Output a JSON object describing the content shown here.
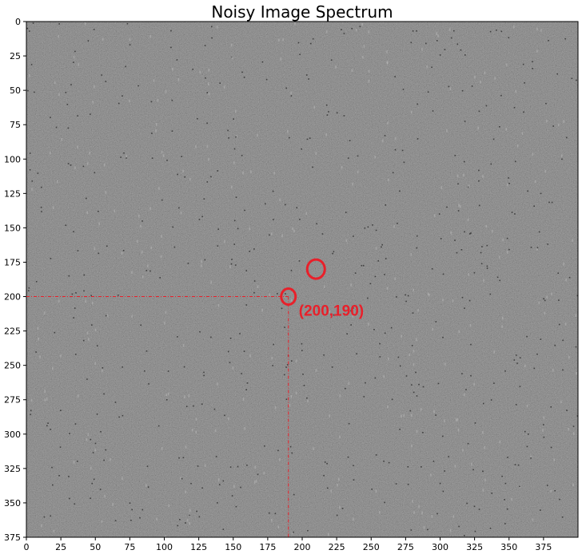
{
  "chart_data": {
    "type": "heatmap",
    "title": "Noisy Image Spectrum",
    "xlabel": "",
    "ylabel": "",
    "xlim": [
      0,
      400
    ],
    "ylim": [
      375,
      0
    ],
    "colormap": "gray",
    "grid": false,
    "x_ticks": [
      0,
      25,
      50,
      75,
      100,
      125,
      150,
      175,
      200,
      225,
      250,
      275,
      300,
      325,
      350,
      375
    ],
    "y_ticks": [
      0,
      25,
      50,
      75,
      100,
      125,
      150,
      175,
      200,
      225,
      250,
      275,
      300,
      325,
      350,
      375
    ],
    "spectrum_center": {
      "x": 200,
      "y": 190
    },
    "marked_peaks": [
      {
        "x": 190,
        "y": 200
      },
      {
        "x": 210,
        "y": 180
      }
    ],
    "guide_point": {
      "x": 190,
      "y": 200
    },
    "annotation": "(200,190)",
    "annotation_color": "#e8202a",
    "background_gray": "#5a5a5a"
  }
}
